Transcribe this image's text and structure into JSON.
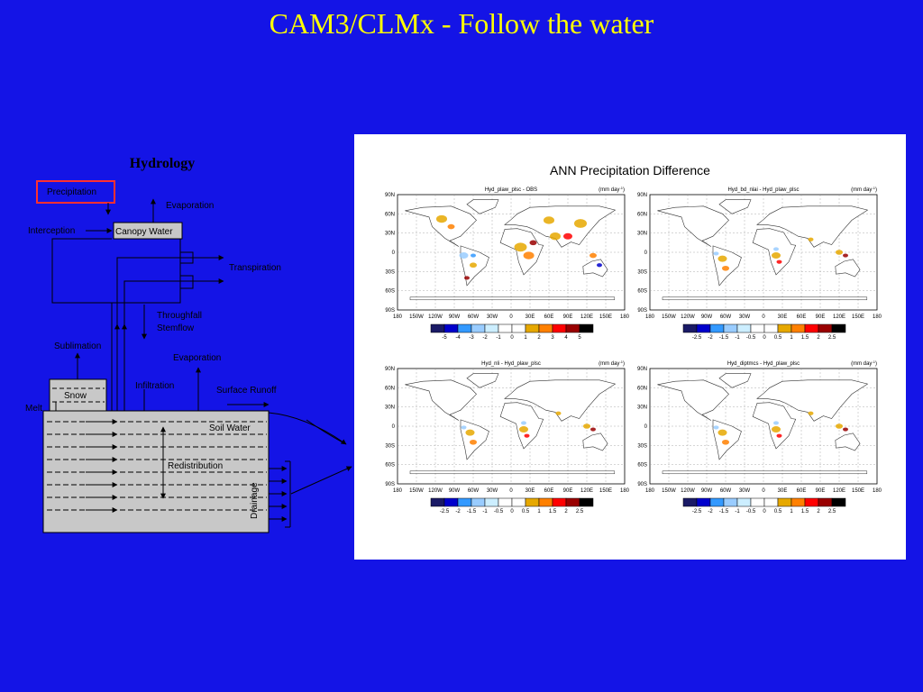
{
  "slide": {
    "title": "CAM3/CLMx - Follow the water"
  },
  "hydrology": {
    "title": "Hydrology",
    "precipitation": "Precipitation",
    "evaporation_canopy": "Evaporation",
    "interception": "Interception",
    "canopy_water": "Canopy Water",
    "transpiration": "Transpiration",
    "throughfall": "Throughfall",
    "stemflow": "Stemflow",
    "sublimation": "Sublimation",
    "evaporation_ground": "Evaporation",
    "infiltration": "Infiltration",
    "surface_runoff": "Surface Runoff",
    "snow": "Snow",
    "melt": "Melt",
    "soil_water": "Soil Water",
    "redistribution": "Redistribution",
    "drainage": "Drainage"
  },
  "figure": {
    "title": "ANN Precipitation Difference",
    "units": "(mm day",
    "units_exp": "-1",
    "units_close": ")",
    "lat_ticks": [
      "90N",
      "60N",
      "30N",
      "0",
      "30S",
      "60S",
      "90S"
    ],
    "lon_ticks": [
      "180",
      "150W",
      "120W",
      "90W",
      "60W",
      "30W",
      "0",
      "30E",
      "60E",
      "90E",
      "120E",
      "150E",
      "180"
    ],
    "panels": [
      {
        "title": "Hyd_plaw_plsc - OBS",
        "legend": [
          "-5",
          "-4",
          "-3",
          "-2",
          "-1",
          "0",
          "1",
          "2",
          "3",
          "4",
          "5"
        ]
      },
      {
        "title": "Hyd_bd_nlai - Hyd_plaw_plsc",
        "legend": [
          "-2.5",
          "-2",
          "-1.5",
          "-1",
          "-0.5",
          "0",
          "0.5",
          "1",
          "1.5",
          "2",
          "2.5"
        ]
      },
      {
        "title": "Hyd_nli - Hyd_plaw_plsc",
        "legend": [
          "-2.5",
          "-2",
          "-1.5",
          "-1",
          "-0.5",
          "0",
          "0.5",
          "1",
          "1.5",
          "2",
          "2.5"
        ]
      },
      {
        "title": "Hyd_diptmcs - Hyd_plaw_plsc",
        "legend": [
          "-2.5",
          "-2",
          "-1.5",
          "-1",
          "-0.5",
          "0",
          "0.5",
          "1",
          "1.5",
          "2",
          "2.5"
        ]
      }
    ],
    "legend_colors": [
      "#1a1a66",
      "#0000cc",
      "#3399ff",
      "#99ccff",
      "#cceeff",
      "#ffffff",
      "#ffffff",
      "#e6a800",
      "#ff8000",
      "#ff0000",
      "#990000",
      "#000000"
    ]
  }
}
